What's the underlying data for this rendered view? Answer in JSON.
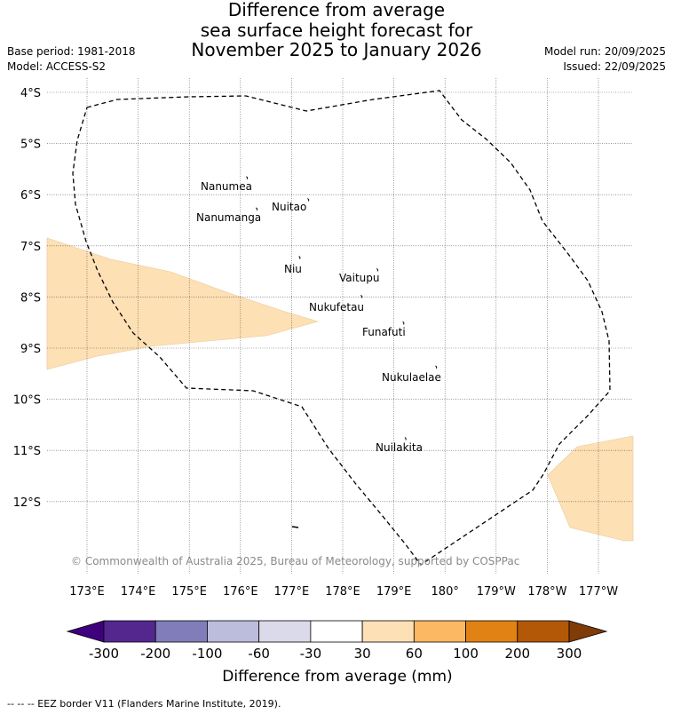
{
  "title": {
    "line1": "Difference from average",
    "line2": "sea surface height forecast for",
    "line3": "November 2025 to January 2026"
  },
  "meta": {
    "base_period": "Base period: 1981-2018",
    "model": "Model: ACCESS-S2",
    "model_run": "Model run: 20/09/2025",
    "issued": "Issued: 22/09/2025"
  },
  "map": {
    "lon_labels": [
      "173°E",
      "174°E",
      "175°E",
      "176°E",
      "177°E",
      "178°E",
      "179°E",
      "180°",
      "179°W",
      "178°W",
      "177°W"
    ],
    "lat_labels": [
      "4°S",
      "5°S",
      "6°S",
      "7°S",
      "8°S",
      "9°S",
      "10°S",
      "11°S",
      "12°S"
    ],
    "islands": [
      {
        "name": "Nanumea",
        "lon": 176.13,
        "lat": -5.68
      },
      {
        "name": "Nuitao",
        "lon": 177.33,
        "lat": -6.11
      },
      {
        "name": "Nanumanga",
        "lon": 176.32,
        "lat": -6.29
      },
      {
        "name": "Niu",
        "lon": 177.16,
        "lat": -7.24
      },
      {
        "name": "Vaitupu",
        "lon": 178.68,
        "lat": -7.48
      },
      {
        "name": "Nukufetau",
        "lon": 178.37,
        "lat": -8.0
      },
      {
        "name": "Funafuti",
        "lon": 179.19,
        "lat": -8.52
      },
      {
        "name": "Nukulaelae",
        "lon": 179.83,
        "lat": -9.38
      },
      {
        "name": "Nuilakita",
        "lon": 179.23,
        "lat": -10.78
      }
    ],
    "copyright": "© Commonwealth of Australia 2025, Bureau of Meteorology, supported by COSPPac",
    "anomaly_color": "#fde0b3",
    "eez_line_color": "#000000"
  },
  "colorbar": {
    "label": "Difference from average (mm)",
    "ticks": [
      "-300",
      "-200",
      "-100",
      "-60",
      "-30",
      "30",
      "60",
      "100",
      "200",
      "300"
    ],
    "colors": [
      "#3f007d",
      "#54278f",
      "#807dba",
      "#bcbddc",
      "#dadaeb",
      "#ffffff",
      "#fee0b6",
      "#fdb863",
      "#e08214",
      "#b35806",
      "#7f3b08"
    ]
  },
  "footnote": "--  --  -- EEZ border V11 (Flanders Marine Institute, 2019)."
}
